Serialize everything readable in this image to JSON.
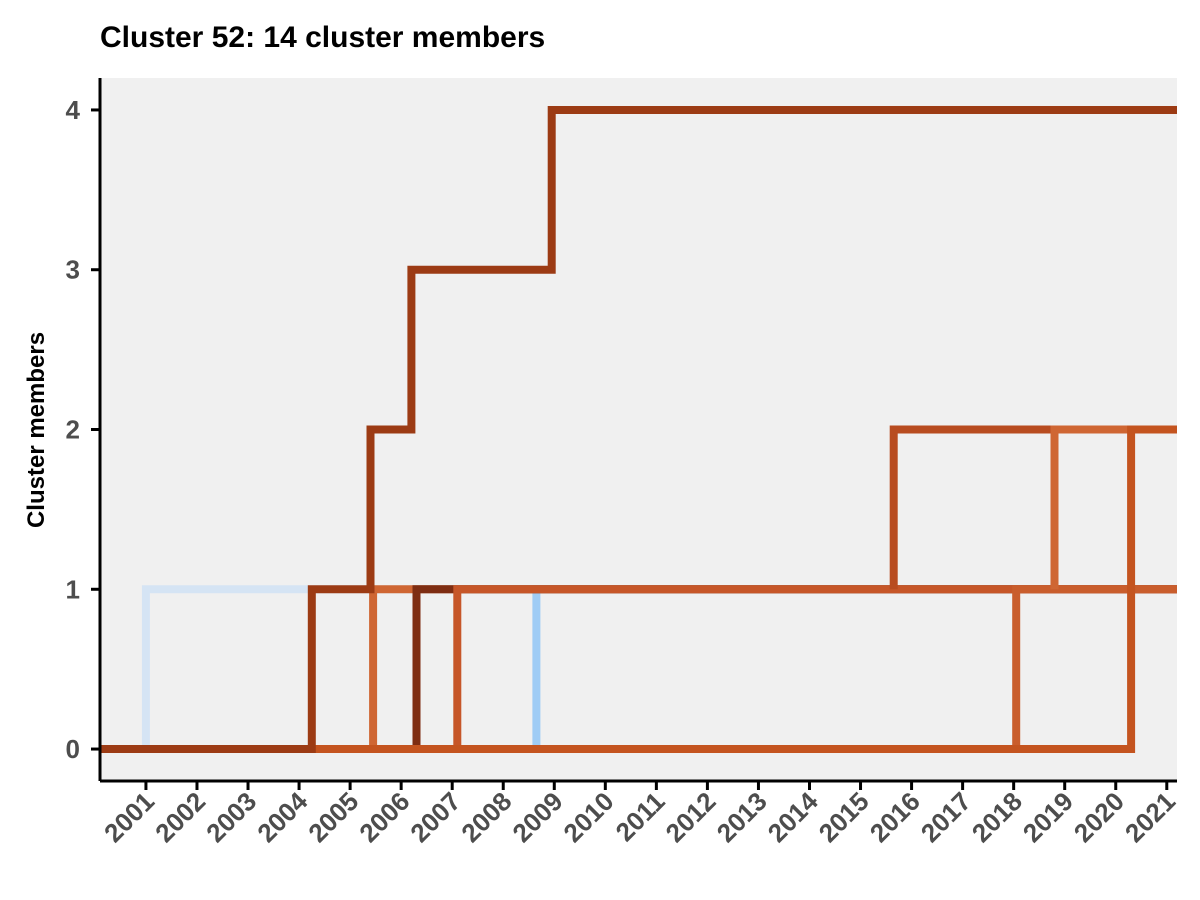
{
  "chart_data": {
    "type": "line",
    "step": "post",
    "title": "Cluster 52: 14 cluster members",
    "xlabel": "",
    "ylabel": "Cluster members",
    "xlim": [
      2000.1,
      2021.2
    ],
    "ylim": [
      -0.2,
      4.2
    ],
    "x_ticks": [
      "2001",
      "2002",
      "2003",
      "2004",
      "2005",
      "2006",
      "2007",
      "2008",
      "2009",
      "2010",
      "2011",
      "2012",
      "2013",
      "2014",
      "2015",
      "2016",
      "2017",
      "2018",
      "2019",
      "2020",
      "2021"
    ],
    "y_ticks": [
      "0",
      "1",
      "2",
      "3",
      "4"
    ],
    "grid": false,
    "legend": "none",
    "panel_background": "#f0f0f0",
    "series": [
      {
        "color": "#d5e4f4",
        "points": [
          [
            2001.0,
            0
          ],
          [
            2001.0,
            1
          ],
          [
            2021.2,
            1
          ]
        ]
      },
      {
        "color": "#9fccf5",
        "points": [
          [
            2008.65,
            0
          ],
          [
            2008.65,
            1
          ],
          [
            2021.2,
            1
          ]
        ]
      },
      {
        "color": "#cf6633",
        "points": [
          [
            2005.45,
            0
          ],
          [
            2005.45,
            1
          ],
          [
            2021.2,
            1
          ]
        ]
      },
      {
        "color": "#7e2d12",
        "points": [
          [
            2006.3,
            0
          ],
          [
            2006.3,
            1
          ],
          [
            2021.2,
            1
          ]
        ]
      },
      {
        "color": "#c65628",
        "points": [
          [
            2007.1,
            0
          ],
          [
            2007.1,
            1
          ],
          [
            2021.2,
            1
          ]
        ]
      },
      {
        "color": "#c95d2c",
        "points": [
          [
            2018.05,
            0
          ],
          [
            2018.05,
            1
          ],
          [
            2021.2,
            1
          ]
        ]
      },
      {
        "color": "#b84c20",
        "points": [
          [
            2015.65,
            1
          ],
          [
            2015.65,
            2
          ],
          [
            2021.2,
            2
          ]
        ]
      },
      {
        "color": "#cf6633",
        "points": [
          [
            2018.8,
            1
          ],
          [
            2018.8,
            2
          ],
          [
            2021.2,
            2
          ]
        ]
      },
      {
        "color": "#c4541f",
        "points": [
          [
            2004.3,
            0
          ],
          [
            2020.3,
            0
          ],
          [
            2020.3,
            2
          ],
          [
            2021.2,
            2
          ]
        ]
      },
      {
        "color": "#9c3b14",
        "points": [
          [
            2000.1,
            0
          ],
          [
            2004.25,
            0
          ],
          [
            2004.25,
            1
          ],
          [
            2005.4,
            1
          ],
          [
            2005.4,
            2
          ],
          [
            2006.2,
            2
          ],
          [
            2006.2,
            3
          ],
          [
            2008.95,
            3
          ],
          [
            2008.95,
            4
          ],
          [
            2021.2,
            4
          ]
        ]
      }
    ]
  }
}
